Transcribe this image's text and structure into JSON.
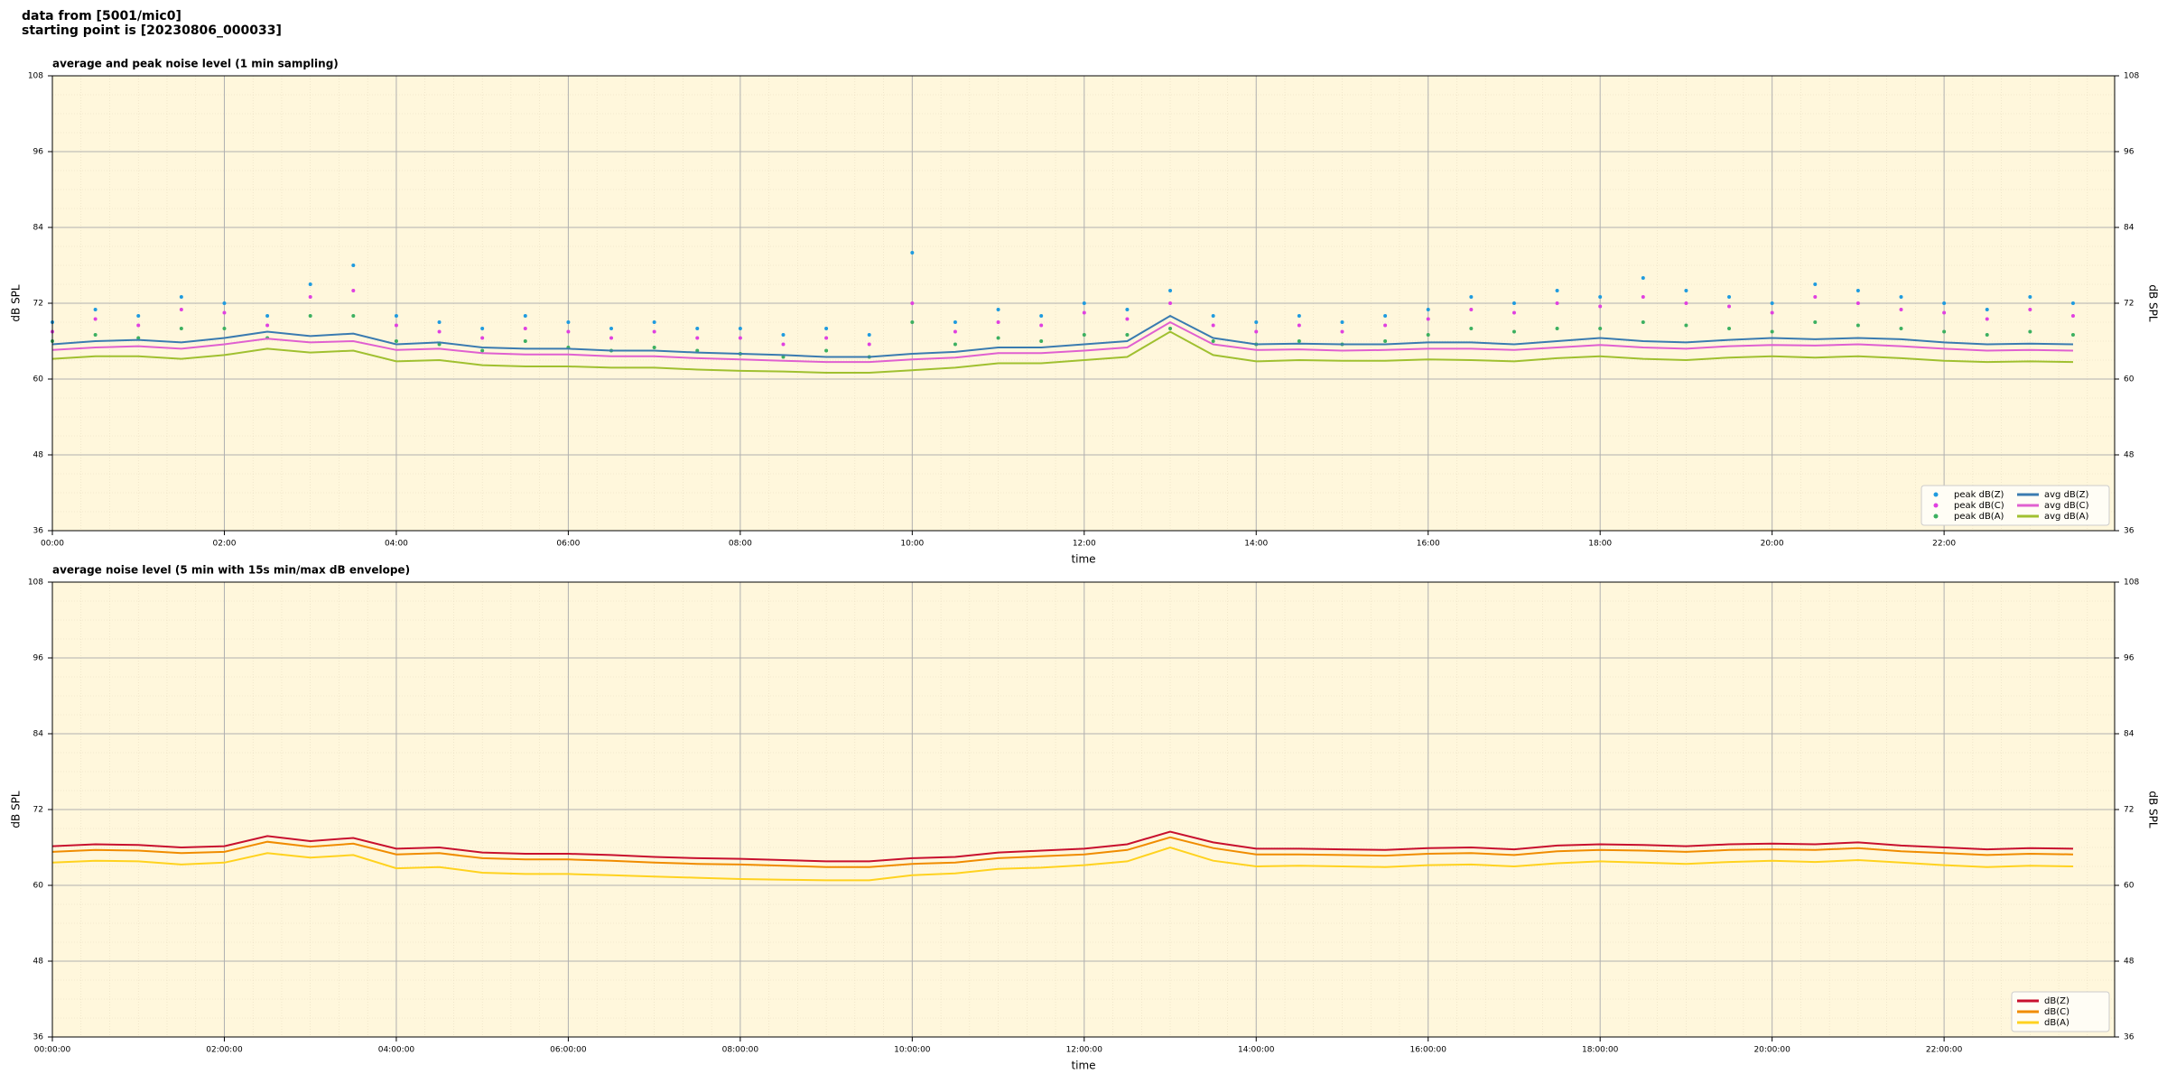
{
  "header": {
    "lines": [
      "data from [5001/mic0]",
      "starting point is [20230806_000033]"
    ]
  },
  "chart_data": [
    {
      "type": "line",
      "title": "average and peak noise level (1 min sampling)",
      "x_label": "time",
      "y_label": "dB SPL",
      "xlim": [
        "00:00",
        "23:59"
      ],
      "xticks": [
        "00:00",
        "02:00",
        "04:00",
        "06:00",
        "08:00",
        "10:00",
        "12:00",
        "14:00",
        "16:00",
        "18:00",
        "20:00",
        "22:00"
      ],
      "ylim": [
        36,
        108
      ],
      "yticks": [
        36,
        48,
        60,
        72,
        84,
        96,
        108
      ],
      "grid": true,
      "legend": "lower right",
      "legend_columns": 2,
      "x": [
        "00:00",
        "00:30",
        "01:00",
        "01:30",
        "02:00",
        "02:30",
        "03:00",
        "03:30",
        "04:00",
        "04:30",
        "05:00",
        "05:30",
        "06:00",
        "06:30",
        "07:00",
        "07:30",
        "08:00",
        "08:30",
        "09:00",
        "09:30",
        "10:00",
        "10:30",
        "11:00",
        "11:30",
        "12:00",
        "12:30",
        "13:00",
        "13:30",
        "14:00",
        "14:30",
        "15:00",
        "15:30",
        "16:00",
        "16:30",
        "17:00",
        "17:30",
        "18:00",
        "18:30",
        "19:00",
        "19:30",
        "20:00",
        "20:30",
        "21:00",
        "21:30",
        "22:00",
        "22:30",
        "23:00",
        "23:30"
      ],
      "series": [
        {
          "name": "peak dB(Z)",
          "kind": "scatter",
          "color": "#1f9bdf",
          "values": [
            69,
            71,
            70,
            73,
            72,
            70,
            75,
            78,
            70,
            69,
            68,
            70,
            69,
            68,
            69,
            68,
            68,
            67,
            68,
            67,
            80,
            69,
            71,
            70,
            72,
            71,
            74,
            70,
            69,
            70,
            69,
            70,
            71,
            73,
            72,
            74,
            73,
            76,
            74,
            73,
            72,
            75,
            74,
            73,
            72,
            71,
            73,
            72
          ]
        },
        {
          "name": "peak dB(C)",
          "kind": "scatter",
          "color": "#e040e0",
          "values": [
            67.5,
            69.5,
            68.5,
            71,
            70.5,
            68.5,
            73,
            74,
            68.5,
            67.5,
            66.5,
            68,
            67.5,
            66.5,
            67.5,
            66.5,
            66.5,
            65.5,
            66.5,
            65.5,
            72,
            67.5,
            69,
            68.5,
            70.5,
            69.5,
            72,
            68.5,
            67.5,
            68.5,
            67.5,
            68.5,
            69.5,
            71,
            70.5,
            72,
            71.5,
            73,
            72,
            71.5,
            70.5,
            73,
            72,
            71,
            70.5,
            69.5,
            71,
            70
          ]
        },
        {
          "name": "peak dB(A)",
          "kind": "scatter",
          "color": "#3cb060",
          "values": [
            66,
            67,
            66.5,
            68,
            68,
            66.5,
            70,
            70,
            66,
            65.5,
            64.5,
            66,
            65,
            64.5,
            65,
            64.5,
            64,
            63.5,
            64.5,
            63.5,
            69,
            65.5,
            66.5,
            66,
            67,
            67,
            68,
            66,
            65.5,
            66,
            65.5,
            66,
            67,
            68,
            67.5,
            68,
            68,
            69,
            68.5,
            68,
            67.5,
            69,
            68.5,
            68,
            67.5,
            67,
            67.5,
            67
          ]
        },
        {
          "name": "avg dB(Z)",
          "kind": "line",
          "color": "#3a7bb0",
          "values": [
            65.5,
            66,
            66.2,
            65.8,
            66.5,
            67.5,
            66.8,
            67.2,
            65.5,
            65.8,
            65,
            64.8,
            64.8,
            64.5,
            64.5,
            64.2,
            64,
            63.8,
            63.5,
            63.5,
            64,
            64.3,
            65,
            65,
            65.5,
            66,
            70,
            66.5,
            65.5,
            65.6,
            65.5,
            65.5,
            65.8,
            65.8,
            65.5,
            66,
            66.5,
            66,
            65.8,
            66.2,
            66.5,
            66.3,
            66.5,
            66.3,
            65.8,
            65.5,
            65.6,
            65.5
          ]
        },
        {
          "name": "avg dB(C)",
          "kind": "line",
          "color": "#e060d0",
          "values": [
            64.6,
            65,
            65.2,
            64.8,
            65.5,
            66.4,
            65.8,
            66,
            64.6,
            64.8,
            64.1,
            63.9,
            63.9,
            63.6,
            63.6,
            63.3,
            63.1,
            62.9,
            62.7,
            62.7,
            63.1,
            63.4,
            64.1,
            64.1,
            64.5,
            65,
            69,
            65.5,
            64.6,
            64.7,
            64.5,
            64.6,
            64.8,
            64.8,
            64.6,
            65,
            65.4,
            65,
            64.8,
            65.2,
            65.4,
            65.3,
            65.5,
            65.2,
            64.8,
            64.5,
            64.6,
            64.5
          ]
        },
        {
          "name": "avg dB(A)",
          "kind": "line",
          "color": "#a0c030",
          "values": [
            63.2,
            63.6,
            63.6,
            63.2,
            63.8,
            64.8,
            64.2,
            64.5,
            62.8,
            63,
            62.2,
            62,
            62,
            61.8,
            61.8,
            61.5,
            61.3,
            61.2,
            61,
            61,
            61.4,
            61.8,
            62.5,
            62.5,
            63,
            63.5,
            67.5,
            63.8,
            62.8,
            63,
            62.9,
            62.9,
            63.1,
            63,
            62.8,
            63.3,
            63.6,
            63.2,
            63,
            63.4,
            63.6,
            63.4,
            63.6,
            63.3,
            62.9,
            62.7,
            62.8,
            62.7
          ]
        }
      ]
    },
    {
      "type": "line",
      "title": "average noise level (5 min with 15s min/max dB envelope)",
      "x_label": "time",
      "y_label": "dB SPL",
      "xlim": [
        "00:00:00",
        "23:59:00"
      ],
      "xticks": [
        "00:00:00",
        "02:00:00",
        "04:00:00",
        "06:00:00",
        "08:00:00",
        "10:00:00",
        "12:00:00",
        "14:00:00",
        "16:00:00",
        "18:00:00",
        "20:00:00",
        "22:00:00"
      ],
      "ylim": [
        36,
        108
      ],
      "yticks": [
        36,
        48,
        60,
        72,
        84,
        96,
        108
      ],
      "grid": true,
      "legend": "lower right",
      "legend_columns": 1,
      "x": [
        "00:00:00",
        "00:30:00",
        "01:00:00",
        "01:30:00",
        "02:00:00",
        "02:30:00",
        "03:00:00",
        "03:30:00",
        "04:00:00",
        "04:30:00",
        "05:00:00",
        "05:30:00",
        "06:00:00",
        "06:30:00",
        "07:00:00",
        "07:30:00",
        "08:00:00",
        "08:30:00",
        "09:00:00",
        "09:30:00",
        "10:00:00",
        "10:30:00",
        "11:00:00",
        "11:30:00",
        "12:00:00",
        "12:30:00",
        "13:00:00",
        "13:30:00",
        "14:00:00",
        "14:30:00",
        "15:00:00",
        "15:30:00",
        "16:00:00",
        "16:30:00",
        "17:00:00",
        "17:30:00",
        "18:00:00",
        "18:30:00",
        "19:00:00",
        "19:30:00",
        "20:00:00",
        "20:30:00",
        "21:00:00",
        "21:30:00",
        "22:00:00",
        "22:30:00",
        "23:00:00",
        "23:30:00"
      ],
      "series": [
        {
          "name": "dB(Z)",
          "kind": "line",
          "color": "#c8102e",
          "values": [
            66.2,
            66.5,
            66.4,
            66,
            66.2,
            67.8,
            67,
            67.5,
            65.8,
            66,
            65.2,
            65,
            65,
            64.8,
            64.5,
            64.3,
            64.2,
            64,
            63.8,
            63.8,
            64.3,
            64.5,
            65.2,
            65.5,
            65.8,
            66.5,
            68.5,
            66.8,
            65.8,
            65.8,
            65.7,
            65.6,
            65.9,
            66,
            65.7,
            66.3,
            66.5,
            66.4,
            66.2,
            66.5,
            66.6,
            66.5,
            66.8,
            66.3,
            66,
            65.7,
            65.9,
            65.8
          ]
        },
        {
          "name": "dB(C)",
          "kind": "line",
          "color": "#f08c00",
          "values": [
            65.3,
            65.6,
            65.5,
            65.1,
            65.3,
            66.9,
            66.1,
            66.6,
            64.9,
            65.1,
            64.3,
            64.1,
            64.1,
            63.9,
            63.6,
            63.4,
            63.3,
            63.1,
            62.9,
            62.9,
            63.4,
            63.6,
            64.3,
            64.6,
            64.9,
            65.6,
            67.6,
            65.9,
            64.9,
            64.9,
            64.8,
            64.7,
            65,
            65.1,
            64.8,
            65.4,
            65.6,
            65.5,
            65.3,
            65.6,
            65.7,
            65.6,
            65.9,
            65.4,
            65.1,
            64.8,
            65,
            64.9
          ]
        },
        {
          "name": "dB(A)",
          "kind": "line",
          "color": "#ffd21f",
          "values": [
            63.6,
            63.9,
            63.8,
            63.3,
            63.6,
            65.1,
            64.4,
            64.8,
            62.7,
            62.9,
            62,
            61.8,
            61.8,
            61.6,
            61.4,
            61.2,
            61,
            60.9,
            60.8,
            60.8,
            61.6,
            61.9,
            62.6,
            62.8,
            63.2,
            63.8,
            66,
            63.9,
            63,
            63.1,
            63,
            62.9,
            63.2,
            63.3,
            63,
            63.5,
            63.8,
            63.6,
            63.4,
            63.7,
            63.9,
            63.7,
            64,
            63.6,
            63.2,
            62.9,
            63.1,
            63
          ]
        }
      ]
    }
  ]
}
